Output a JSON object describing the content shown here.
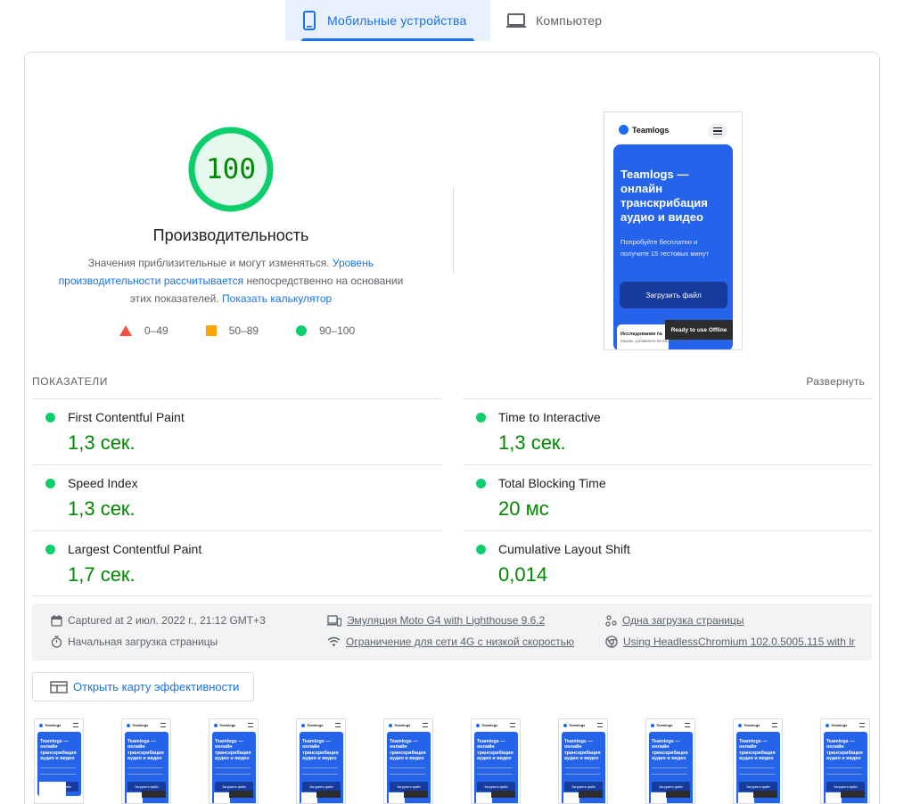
{
  "tabs": {
    "mobile": "Мобильные устройства",
    "desktop": "Компьютер"
  },
  "colors": {
    "accent": "#1a73e8",
    "pass": "#0cce6b",
    "pass_text": "#008800",
    "average": "#ffa400",
    "fail": "#ff4e42"
  },
  "gauge": {
    "score": "100",
    "score_value": 100,
    "title": "Производительность",
    "desc_prefix": "Значения приблизительные и могут изменяться.",
    "desc_link1": "Уровень производительности рассчитывается",
    "desc_middle": "непосредственно на основании этих показателей.",
    "desc_link2": "Показать калькулятор"
  },
  "legend": {
    "fail": "0–49",
    "average": "50–89",
    "pass": "90–100"
  },
  "screenshot": {
    "brand": "Teamlogs",
    "hero_title": "Teamlogs — онлайн транскрибация аудио и видео",
    "hero_sub": "Попробуйте бесплатно и получите 15 тестовых минут",
    "upload_button": "Загрузить файл",
    "offline_badge": "Ready to use Offline",
    "research_title": "Исследование №",
    "research_sub": "Казань, добавлено 06.03.2021 17:24"
  },
  "metrics": {
    "header": "ПОКАЗАТЕЛИ",
    "expand": "Развернуть",
    "items": [
      {
        "name": "First Contentful Paint",
        "value": "1,3 сек."
      },
      {
        "name": "Time to Interactive",
        "value": "1,3 сек."
      },
      {
        "name": "Speed Index",
        "value": "1,3 сек."
      },
      {
        "name": "Total Blocking Time",
        "value": "20 мс"
      },
      {
        "name": "Largest Contentful Paint",
        "value": "1,7 сек."
      },
      {
        "name": "Cumulative Layout Shift",
        "value": "0,014"
      }
    ]
  },
  "info": {
    "captured": "Captured at 2 июл. 2022 г., 21:12 GMT+3",
    "initial_load": "Начальная загрузка страницы",
    "emulation": "Эмуляция Moto G4 with Lighthouse 9.6.2",
    "throttling": "Ограничение для сети 4G с низкой скоростью",
    "single_load": "Одна загрузка страницы",
    "browser": "Using HeadlessChromium 102.0.5005.115 with lr"
  },
  "treemap": {
    "label": "Открыть карту эффективности"
  },
  "filmstrip": {
    "brand": "Teamlogs",
    "hero_title": "Teamlogs — онлайн транскрибация аудио и видео",
    "button": "Загрузить файл",
    "count": 10
  }
}
